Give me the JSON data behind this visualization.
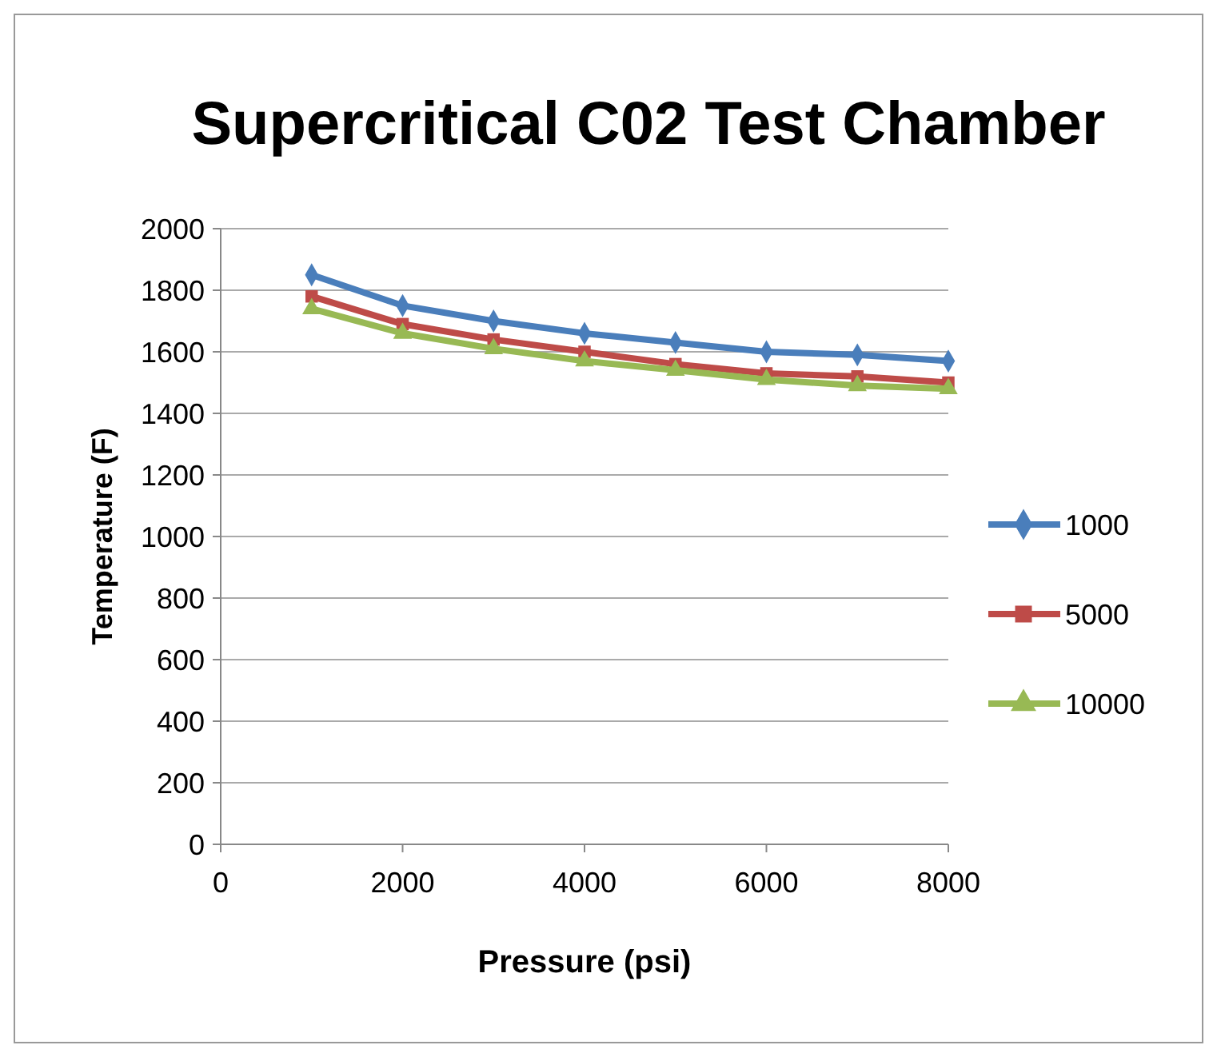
{
  "chart_data": {
    "type": "line",
    "title": "Supercritical C02 Test Chamber",
    "xlabel": "Pressure (psi)",
    "ylabel": "Temperature (F)",
    "x": [
      1000,
      2000,
      3000,
      4000,
      5000,
      6000,
      7000,
      8000
    ],
    "series": [
      {
        "name": "1000",
        "color": "#4a7ebb",
        "marker": "diamond",
        "values": [
          1850,
          1750,
          1700,
          1660,
          1630,
          1600,
          1590,
          1570
        ]
      },
      {
        "name": "5000",
        "color": "#be4b48",
        "marker": "square",
        "values": [
          1780,
          1690,
          1640,
          1600,
          1560,
          1530,
          1520,
          1500
        ]
      },
      {
        "name": "10000",
        "color": "#98b954",
        "marker": "triangle",
        "values": [
          1740,
          1660,
          1610,
          1570,
          1540,
          1510,
          1490,
          1480
        ]
      }
    ],
    "xlim": [
      0,
      8000
    ],
    "xticks": [
      0,
      2000,
      4000,
      6000,
      8000
    ],
    "ylim": [
      0,
      2000
    ],
    "yticks": [
      0,
      200,
      400,
      600,
      800,
      1000,
      1200,
      1400,
      1600,
      1800,
      2000
    ],
    "grid": "y",
    "legend": "right"
  }
}
